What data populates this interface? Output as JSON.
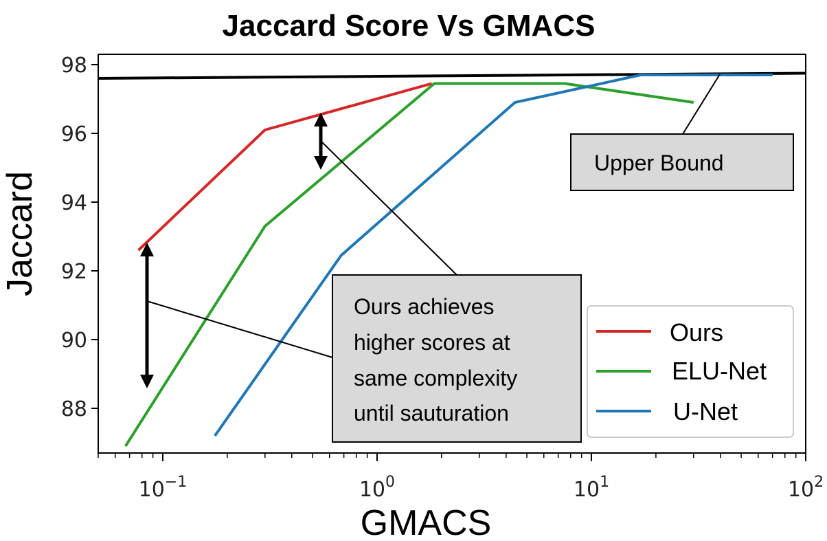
{
  "chart_data": {
    "type": "line",
    "title": "Jaccard Score Vs GMACS",
    "xlabel": "GMACS",
    "ylabel": "Jaccard",
    "xscale": "log",
    "xlim": [
      0.05,
      100
    ],
    "ylim": [
      86.7,
      98.3
    ],
    "x_ticks": [
      {
        "value": 0.1,
        "base": "10",
        "exp": "−1"
      },
      {
        "value": 1,
        "base": "10",
        "exp": "0"
      },
      {
        "value": 10,
        "base": "10",
        "exp": "1"
      },
      {
        "value": 100,
        "base": "10",
        "exp": "2"
      }
    ],
    "y_ticks": [
      88,
      90,
      92,
      94,
      96,
      98
    ],
    "grid": false,
    "legend": "lower-right",
    "series": [
      {
        "name": "Ours",
        "color": "#d62728",
        "x": [
          0.077,
          0.3,
          1.8
        ],
        "y": [
          92.6,
          96.1,
          97.45
        ]
      },
      {
        "name": "ELU-Net",
        "color": "#2ca02c",
        "x": [
          0.067,
          0.3,
          1.85,
          7.5,
          30
        ],
        "y": [
          86.9,
          93.3,
          97.45,
          97.45,
          96.9
        ]
      },
      {
        "name": "U-Net",
        "color": "#1f77b4",
        "x": [
          0.175,
          0.68,
          4.4,
          17,
          70
        ],
        "y": [
          87.2,
          92.45,
          96.9,
          97.7,
          97.7
        ]
      }
    ],
    "upper_bound": {
      "color": "#000000",
      "x": [
        0.05,
        100
      ],
      "y": [
        97.6,
        97.75
      ]
    },
    "annotations": [
      {
        "id": "upper-bound",
        "lines": [
          "Upper Bound"
        ]
      },
      {
        "id": "gap-note",
        "lines": [
          "Ours achieves",
          "higher scores at",
          "same complexity",
          "until sauturation"
        ]
      }
    ]
  }
}
